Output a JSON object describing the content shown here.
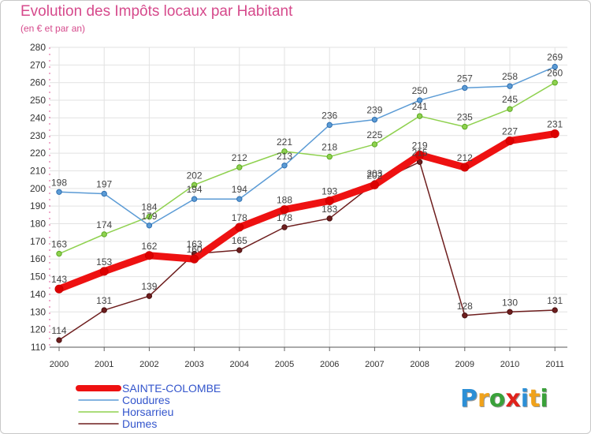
{
  "header": {
    "title": "Evolution des Impôts locaux par Habitant",
    "subtitle": "(en € et par an)"
  },
  "logo": {
    "text": "Proxiti",
    "letters": [
      "P",
      "r",
      "o",
      "x",
      "i",
      "t",
      "i"
    ],
    "letter_colors": [
      "#2c8fd6",
      "#f0a21b",
      "#3aa13a",
      "#e0221b",
      "#2c8fd6",
      "#f0a21b",
      "#3aa13a"
    ]
  },
  "chart_data": {
    "type": "line",
    "title": "Evolution des Impôts locaux par Habitant",
    "subtitle": "(en € et par an)",
    "xlabel": "",
    "ylabel": "",
    "x": [
      "2000",
      "2001",
      "2002",
      "2003",
      "2004",
      "2005",
      "2006",
      "2007",
      "2008",
      "2009",
      "2010",
      "2011"
    ],
    "ylim": [
      110,
      280
    ],
    "yticks": [
      110,
      120,
      130,
      140,
      150,
      160,
      170,
      180,
      190,
      200,
      210,
      220,
      230,
      240,
      250,
      260,
      270,
      280
    ],
    "grid": true,
    "legend_position": "bottom-left",
    "series": [
      {
        "name": "Dumes",
        "color": "#6e1e1e",
        "emphasis": false,
        "values": [
          114,
          131,
          139,
          163,
          165,
          178,
          183,
          203,
          215,
          128,
          130,
          131
        ],
        "labels": [
          "114",
          "131",
          "139",
          "163",
          "165",
          "178",
          "183",
          "203",
          "215",
          "128",
          "130",
          "131"
        ]
      },
      {
        "name": "Horsarrieu",
        "color": "#8fd14f",
        "emphasis": false,
        "values": [
          163,
          174,
          184,
          202,
          212,
          221,
          218,
          225,
          241,
          235,
          245,
          260
        ],
        "labels": [
          "163",
          "174",
          "184",
          "202",
          "212",
          "221",
          "218",
          "225",
          "241",
          "235",
          "245",
          "260"
        ]
      },
      {
        "name": "Coudures",
        "color": "#5b9bd5",
        "emphasis": false,
        "values": [
          198,
          197,
          179,
          194,
          194,
          213,
          236,
          239,
          250,
          257,
          258,
          269
        ],
        "labels": [
          "198",
          "197",
          "179",
          "194",
          "194",
          "213",
          "236",
          "239",
          "250",
          "257",
          "258",
          "269"
        ]
      },
      {
        "name": "SAINTE-COLOMBE",
        "color": "#ee1111",
        "emphasis": true,
        "values": [
          143,
          153,
          162,
          160,
          178,
          188,
          193,
          202,
          219,
          212,
          227,
          231
        ],
        "labels": [
          "143",
          "153",
          "162",
          "160",
          "178",
          "188",
          "193",
          "202",
          "219",
          "212",
          "227",
          "231"
        ]
      }
    ],
    "legend_order": [
      "SAINTE-COLOMBE",
      "Coudures",
      "Horsarrieu",
      "Dumes"
    ]
  }
}
